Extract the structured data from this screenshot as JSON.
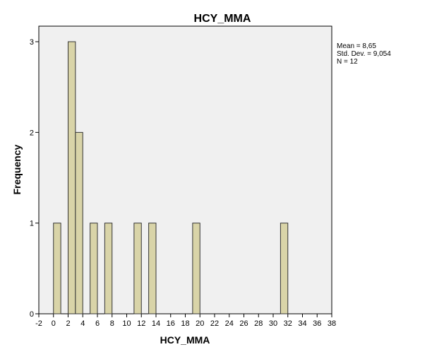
{
  "chart_data": {
    "type": "bar",
    "title": "HCY_MMA",
    "xlabel": "HCY_MMA",
    "ylabel": "Frequency",
    "xlim": [
      -2,
      38
    ],
    "ylim": [
      0,
      3
    ],
    "x_ticks": [
      -2,
      0,
      2,
      4,
      6,
      8,
      10,
      12,
      14,
      16,
      18,
      20,
      22,
      24,
      26,
      28,
      30,
      32,
      34,
      36,
      38
    ],
    "y_ticks": [
      0,
      1,
      2,
      3
    ],
    "bin_width": 1,
    "bins": [
      {
        "start": 0,
        "end": 1,
        "count": 1
      },
      {
        "start": 2,
        "end": 3,
        "count": 3
      },
      {
        "start": 3,
        "end": 4,
        "count": 2
      },
      {
        "start": 5,
        "end": 6,
        "count": 1
      },
      {
        "start": 7,
        "end": 8,
        "count": 1
      },
      {
        "start": 11,
        "end": 12,
        "count": 1
      },
      {
        "start": 13,
        "end": 14,
        "count": 1
      },
      {
        "start": 19,
        "end": 20,
        "count": 1
      },
      {
        "start": 31,
        "end": 32,
        "count": 1
      }
    ],
    "stats": [
      "Mean = 8,65",
      "Std. Dev. = 9,054",
      "N = 12"
    ],
    "grid": false,
    "colors": {
      "bar_fill": "#d9d4a8",
      "bar_stroke": "#333333",
      "plot_background": "#f0f0f0",
      "axis": "#000000"
    }
  }
}
